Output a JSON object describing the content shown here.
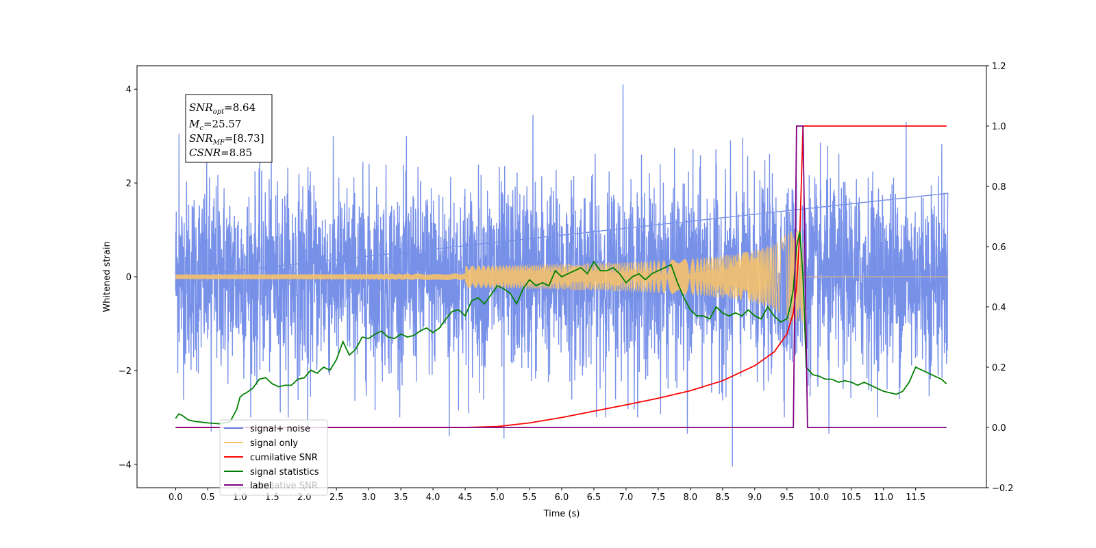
{
  "chart_data": {
    "type": "line",
    "xlabel": "Time (s)",
    "ylabel": "Whitened strain",
    "xlim": [
      -0.6,
      12.6
    ],
    "ylim_left": [
      -4.5,
      4.5
    ],
    "ylim_right": [
      -0.2,
      1.2
    ],
    "x_ticks": [
      "0.0",
      "0.5",
      "1.0",
      "1.5",
      "2.0",
      "2.5",
      "3.0",
      "3.5",
      "4.0",
      "4.5",
      "5.0",
      "5.5",
      "6.0",
      "6.5",
      "7.0",
      "7.5",
      "8.0",
      "8.5",
      "9.0",
      "9.5",
      "10.0",
      "10.5",
      "11.0",
      "11.5"
    ],
    "y_ticks_left": [
      "−4",
      "−2",
      "0",
      "2",
      "4"
    ],
    "y_ticks_right": [
      "−0.2",
      "0.0",
      "0.2",
      "0.4",
      "0.6",
      "0.8",
      "1.0",
      "1.2"
    ],
    "annotation": {
      "snr_opt_name": "SNR",
      "snr_opt_sub": "opt",
      "snr_opt_value": "=8.64",
      "mc_name": "M",
      "mc_sub": "c",
      "mc_value": "=25.57",
      "snr_mf_name": "SNR",
      "snr_mf_sub": "MF",
      "snr_mf_value": "=[8.73]",
      "csnr_name": "CSNR",
      "csnr_value": "=8.85"
    },
    "series": [
      {
        "name": "signal+ noise",
        "axis": "left",
        "color": "#6b87e6",
        "x_range": [
          0.0,
          12.0
        ],
        "noise_std": 1.0,
        "peaks": [
          [
            0.05,
            3.05
          ],
          [
            0.55,
            -3.3
          ],
          [
            2.05,
            -3.25
          ],
          [
            4.25,
            -3.4
          ],
          [
            5.1,
            -3.45
          ],
          [
            5.55,
            3.45
          ],
          [
            6.95,
            4.1
          ],
          [
            7.95,
            -3.35
          ],
          [
            8.65,
            -4.05
          ],
          [
            10.15,
            -3.35
          ],
          [
            11.35,
            3.3
          ]
        ]
      },
      {
        "name": "signal only",
        "axis": "left",
        "color": "#f5c26b",
        "x_range": [
          0.0,
          12.0
        ],
        "merger_time": 9.75,
        "peak_amplitude": 1.0
      },
      {
        "name": "cumilative SNR",
        "axis": "right",
        "color": "#ff0000",
        "x": [
          0.0,
          4.5,
          5.0,
          5.5,
          6.0,
          6.5,
          7.0,
          7.5,
          8.0,
          8.5,
          9.0,
          9.3,
          9.5,
          9.6,
          9.65,
          9.7,
          9.73,
          9.75,
          9.8,
          11.0,
          11.98
        ],
        "values": [
          0.0,
          0.0,
          0.003,
          0.015,
          0.033,
          0.054,
          0.075,
          0.097,
          0.122,
          0.155,
          0.205,
          0.25,
          0.31,
          0.38,
          0.47,
          0.64,
          0.85,
          1.0,
          1.0,
          1.0,
          1.0
        ]
      },
      {
        "name": "signal statistics",
        "axis": "right",
        "color": "#008000",
        "x": [
          0.0,
          0.05,
          0.1,
          0.2,
          0.3,
          0.5,
          0.7,
          0.85,
          0.95,
          1.0,
          1.05,
          1.1,
          1.2,
          1.3,
          1.4,
          1.5,
          1.6,
          1.7,
          1.8,
          1.9,
          2.0,
          2.1,
          2.2,
          2.3,
          2.4,
          2.5,
          2.6,
          2.7,
          2.8,
          2.9,
          3.0,
          3.1,
          3.2,
          3.3,
          3.4,
          3.5,
          3.6,
          3.7,
          3.8,
          3.9,
          4.0,
          4.1,
          4.2,
          4.3,
          4.4,
          4.5,
          4.6,
          4.7,
          4.8,
          4.9,
          5.0,
          5.1,
          5.2,
          5.3,
          5.4,
          5.5,
          5.6,
          5.7,
          5.8,
          5.9,
          6.0,
          6.1,
          6.2,
          6.3,
          6.4,
          6.5,
          6.6,
          6.7,
          6.8,
          6.9,
          7.0,
          7.1,
          7.2,
          7.3,
          7.4,
          7.5,
          7.6,
          7.7,
          7.8,
          7.9,
          8.0,
          8.1,
          8.2,
          8.3,
          8.4,
          8.5,
          8.6,
          8.7,
          8.8,
          8.9,
          9.0,
          9.1,
          9.2,
          9.3,
          9.4,
          9.5,
          9.55,
          9.6,
          9.65,
          9.7,
          9.75,
          9.8,
          9.9,
          10.0,
          10.1,
          10.2,
          10.3,
          10.4,
          10.5,
          10.6,
          10.7,
          10.8,
          10.9,
          11.0,
          11.1,
          11.2,
          11.3,
          11.4,
          11.5,
          11.6,
          11.7,
          11.8,
          11.9,
          11.98
        ],
        "values": [
          0.03,
          0.045,
          0.04,
          0.025,
          0.02,
          0.015,
          0.012,
          0.02,
          0.06,
          0.1,
          0.11,
          0.115,
          0.13,
          0.16,
          0.165,
          0.145,
          0.135,
          0.14,
          0.14,
          0.16,
          0.165,
          0.19,
          0.18,
          0.2,
          0.19,
          0.225,
          0.285,
          0.24,
          0.26,
          0.3,
          0.295,
          0.31,
          0.32,
          0.3,
          0.295,
          0.31,
          0.3,
          0.305,
          0.32,
          0.33,
          0.315,
          0.33,
          0.36,
          0.385,
          0.39,
          0.37,
          0.42,
          0.43,
          0.41,
          0.44,
          0.47,
          0.46,
          0.445,
          0.41,
          0.46,
          0.49,
          0.47,
          0.48,
          0.47,
          0.52,
          0.5,
          0.51,
          0.52,
          0.53,
          0.51,
          0.55,
          0.52,
          0.52,
          0.53,
          0.51,
          0.48,
          0.5,
          0.51,
          0.49,
          0.51,
          0.52,
          0.53,
          0.54,
          0.48,
          0.43,
          0.39,
          0.37,
          0.37,
          0.36,
          0.4,
          0.38,
          0.37,
          0.38,
          0.37,
          0.39,
          0.37,
          0.36,
          0.4,
          0.37,
          0.35,
          0.36,
          0.4,
          0.46,
          0.6,
          0.65,
          0.5,
          0.2,
          0.175,
          0.17,
          0.16,
          0.16,
          0.15,
          0.155,
          0.15,
          0.14,
          0.15,
          0.14,
          0.13,
          0.12,
          0.115,
          0.11,
          0.12,
          0.15,
          0.2,
          0.19,
          0.18,
          0.17,
          0.16,
          0.145
        ]
      },
      {
        "name": "label",
        "axis": "right",
        "color": "#800080",
        "x": [
          0.0,
          9.6,
          9.65,
          9.75,
          9.82,
          11.98
        ],
        "values": [
          0.0,
          0.0,
          1.0,
          1.0,
          0.0,
          0.0
        ]
      }
    ],
    "legend": {
      "placement": "lower-left",
      "entries": [
        "signal+ noise",
        "signal only",
        "cumilative SNR",
        "signal statistics",
        "label"
      ],
      "overlapping_text": "cumilative SNR"
    }
  }
}
